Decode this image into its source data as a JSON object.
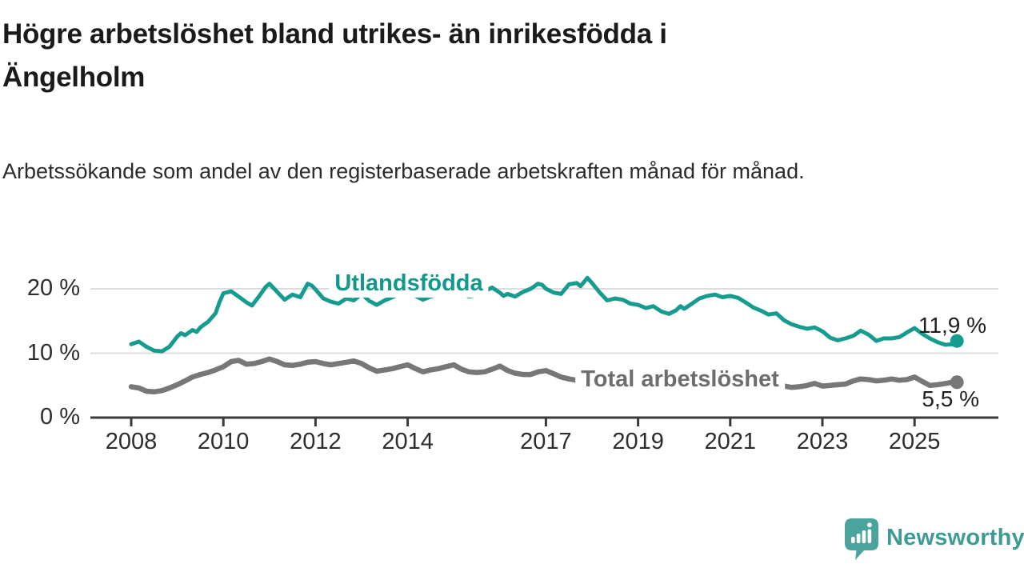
{
  "header": {
    "title": "Högre arbetslöshet bland utrikes- än inrikesfödda i Ängelholm",
    "subtitle": "Arbetssökande som andel av den registerbaserade arbetskraften månad för månad."
  },
  "footer": {
    "brand": "Newsworthy",
    "logo_icon": "newsworthy-speech-bubble-bar-chart-icon",
    "brand_color": "#3E9B94",
    "icon_color": "#4BA39D"
  },
  "chart_data": {
    "type": "line",
    "title": "Högre arbetslöshet bland utrikes- än inrikesfödda i Ängelholm",
    "subtitle": "Arbetssökande som andel av den registerbaserade arbetskraften månad för månad.",
    "xlabel": "",
    "ylabel": "",
    "unit": "%",
    "grid": "horizontal",
    "grid_color": "#dcdcdc",
    "axis_color": "#3a3a3a",
    "tick_text_color": "#2d2d2d",
    "value_text_color": "#1f1f1f",
    "x_range": [
      2008.0,
      2025.92
    ],
    "ylim": [
      0,
      23
    ],
    "x_ticks": [
      2008,
      2010,
      2012,
      2014,
      2017,
      2019,
      2021,
      2023,
      2025
    ],
    "y_ticks": [
      {
        "value": 0,
        "label": "0 %"
      },
      {
        "value": 10,
        "label": "10 %"
      },
      {
        "value": 20,
        "label": "20 %"
      }
    ],
    "series": [
      {
        "name": "Utlandsfödda",
        "color": "#169B8F",
        "label_color": "#12978B",
        "line_width": 5,
        "end_value": 11.9,
        "end_label": "11,9 %",
        "points": [
          [
            2008.0,
            11.4
          ],
          [
            2008.17,
            11.8
          ],
          [
            2008.33,
            11.0
          ],
          [
            2008.5,
            10.4
          ],
          [
            2008.67,
            10.3
          ],
          [
            2008.83,
            11.0
          ],
          [
            2009.0,
            12.6
          ],
          [
            2009.08,
            13.1
          ],
          [
            2009.17,
            12.8
          ],
          [
            2009.33,
            13.6
          ],
          [
            2009.42,
            13.3
          ],
          [
            2009.5,
            14.0
          ],
          [
            2009.67,
            14.9
          ],
          [
            2009.83,
            16.2
          ],
          [
            2009.92,
            18.0
          ],
          [
            2010.0,
            19.3
          ],
          [
            2010.17,
            19.6
          ],
          [
            2010.33,
            18.8
          ],
          [
            2010.5,
            17.9
          ],
          [
            2010.62,
            17.4
          ],
          [
            2010.75,
            18.6
          ],
          [
            2010.92,
            20.3
          ],
          [
            2011.0,
            20.8
          ],
          [
            2011.17,
            19.5
          ],
          [
            2011.33,
            18.3
          ],
          [
            2011.5,
            19.1
          ],
          [
            2011.67,
            18.7
          ],
          [
            2011.83,
            20.8
          ],
          [
            2011.92,
            20.5
          ],
          [
            2012.0,
            19.9
          ],
          [
            2012.17,
            18.5
          ],
          [
            2012.33,
            18.0
          ],
          [
            2012.5,
            17.7
          ],
          [
            2012.67,
            18.5
          ],
          [
            2012.83,
            18.2
          ],
          [
            2013.0,
            19.2
          ],
          [
            2013.17,
            18.1
          ],
          [
            2013.33,
            17.5
          ],
          [
            2013.5,
            18.2
          ],
          [
            2013.67,
            18.7
          ],
          [
            2013.83,
            19.2
          ],
          [
            2014.0,
            19.6
          ],
          [
            2014.17,
            18.9
          ],
          [
            2014.33,
            18.3
          ],
          [
            2014.5,
            18.8
          ],
          [
            2014.67,
            19.2
          ],
          [
            2014.83,
            19.5
          ],
          [
            2015.0,
            19.8
          ],
          [
            2015.17,
            19.2
          ],
          [
            2015.33,
            18.8
          ],
          [
            2015.5,
            19.0
          ],
          [
            2015.67,
            19.6
          ],
          [
            2015.83,
            20.2
          ],
          [
            2016.0,
            19.4
          ],
          [
            2016.08,
            18.9
          ],
          [
            2016.17,
            19.2
          ],
          [
            2016.33,
            18.8
          ],
          [
            2016.5,
            19.5
          ],
          [
            2016.67,
            20.0
          ],
          [
            2016.83,
            20.8
          ],
          [
            2016.92,
            20.6
          ],
          [
            2017.0,
            20.0
          ],
          [
            2017.17,
            19.4
          ],
          [
            2017.33,
            19.2
          ],
          [
            2017.5,
            20.7
          ],
          [
            2017.67,
            20.9
          ],
          [
            2017.75,
            20.4
          ],
          [
            2017.9,
            21.7
          ],
          [
            2018.0,
            20.9
          ],
          [
            2018.17,
            19.4
          ],
          [
            2018.33,
            18.2
          ],
          [
            2018.5,
            18.5
          ],
          [
            2018.67,
            18.3
          ],
          [
            2018.83,
            17.7
          ],
          [
            2019.0,
            17.5
          ],
          [
            2019.17,
            17.0
          ],
          [
            2019.33,
            17.3
          ],
          [
            2019.5,
            16.5
          ],
          [
            2019.67,
            16.1
          ],
          [
            2019.83,
            16.7
          ],
          [
            2019.92,
            17.3
          ],
          [
            2020.0,
            16.9
          ],
          [
            2020.17,
            17.7
          ],
          [
            2020.33,
            18.5
          ],
          [
            2020.5,
            18.9
          ],
          [
            2020.67,
            19.1
          ],
          [
            2020.83,
            18.7
          ],
          [
            2021.0,
            18.9
          ],
          [
            2021.17,
            18.6
          ],
          [
            2021.33,
            17.9
          ],
          [
            2021.5,
            17.1
          ],
          [
            2021.67,
            16.6
          ],
          [
            2021.83,
            16.0
          ],
          [
            2022.0,
            16.2
          ],
          [
            2022.17,
            15.1
          ],
          [
            2022.33,
            14.5
          ],
          [
            2022.5,
            14.1
          ],
          [
            2022.67,
            13.8
          ],
          [
            2022.83,
            14.0
          ],
          [
            2023.0,
            13.4
          ],
          [
            2023.17,
            12.4
          ],
          [
            2023.33,
            12.0
          ],
          [
            2023.5,
            12.3
          ],
          [
            2023.67,
            12.7
          ],
          [
            2023.83,
            13.5
          ],
          [
            2024.0,
            12.9
          ],
          [
            2024.17,
            11.9
          ],
          [
            2024.33,
            12.3
          ],
          [
            2024.5,
            12.3
          ],
          [
            2024.67,
            12.5
          ],
          [
            2024.83,
            13.2
          ],
          [
            2025.0,
            13.9
          ],
          [
            2025.17,
            13.0
          ],
          [
            2025.33,
            12.3
          ],
          [
            2025.5,
            11.7
          ],
          [
            2025.67,
            11.3
          ],
          [
            2025.83,
            11.4
          ],
          [
            2025.92,
            11.9
          ]
        ]
      },
      {
        "name": "Total arbetslöshet",
        "color": "#777777",
        "label_color": "#6d6d6d",
        "line_width": 6.5,
        "end_value": 5.5,
        "end_label": "5,5 %",
        "points": [
          [
            2008.0,
            4.8
          ],
          [
            2008.17,
            4.6
          ],
          [
            2008.33,
            4.1
          ],
          [
            2008.5,
            4.0
          ],
          [
            2008.67,
            4.2
          ],
          [
            2008.83,
            4.6
          ],
          [
            2009.0,
            5.1
          ],
          [
            2009.17,
            5.7
          ],
          [
            2009.33,
            6.3
          ],
          [
            2009.5,
            6.7
          ],
          [
            2009.67,
            7.0
          ],
          [
            2009.83,
            7.4
          ],
          [
            2010.0,
            7.9
          ],
          [
            2010.17,
            8.7
          ],
          [
            2010.33,
            8.9
          ],
          [
            2010.5,
            8.3
          ],
          [
            2010.67,
            8.4
          ],
          [
            2010.83,
            8.7
          ],
          [
            2011.0,
            9.1
          ],
          [
            2011.17,
            8.7
          ],
          [
            2011.33,
            8.2
          ],
          [
            2011.5,
            8.1
          ],
          [
            2011.67,
            8.3
          ],
          [
            2011.83,
            8.6
          ],
          [
            2012.0,
            8.7
          ],
          [
            2012.17,
            8.4
          ],
          [
            2012.33,
            8.2
          ],
          [
            2012.5,
            8.4
          ],
          [
            2012.67,
            8.6
          ],
          [
            2012.83,
            8.8
          ],
          [
            2013.0,
            8.4
          ],
          [
            2013.17,
            7.7
          ],
          [
            2013.33,
            7.2
          ],
          [
            2013.5,
            7.4
          ],
          [
            2013.67,
            7.6
          ],
          [
            2013.83,
            7.9
          ],
          [
            2014.0,
            8.2
          ],
          [
            2014.17,
            7.6
          ],
          [
            2014.33,
            7.1
          ],
          [
            2014.5,
            7.4
          ],
          [
            2014.67,
            7.6
          ],
          [
            2014.83,
            7.9
          ],
          [
            2015.0,
            8.2
          ],
          [
            2015.17,
            7.5
          ],
          [
            2015.33,
            7.1
          ],
          [
            2015.5,
            7.0
          ],
          [
            2015.67,
            7.1
          ],
          [
            2015.83,
            7.5
          ],
          [
            2016.0,
            8.0
          ],
          [
            2016.17,
            7.3
          ],
          [
            2016.33,
            6.9
          ],
          [
            2016.5,
            6.7
          ],
          [
            2016.67,
            6.7
          ],
          [
            2016.83,
            7.1
          ],
          [
            2017.0,
            7.3
          ],
          [
            2017.17,
            6.8
          ],
          [
            2017.33,
            6.3
          ],
          [
            2017.5,
            6.0
          ],
          [
            2017.67,
            5.8
          ],
          [
            2017.83,
            5.7
          ],
          [
            2018.0,
            5.9
          ],
          [
            2018.17,
            5.6
          ],
          [
            2018.33,
            5.4
          ],
          [
            2018.5,
            5.2
          ],
          [
            2018.67,
            5.1
          ],
          [
            2018.83,
            5.2
          ],
          [
            2019.0,
            5.3
          ],
          [
            2019.17,
            5.1
          ],
          [
            2019.33,
            4.9
          ],
          [
            2019.5,
            4.8
          ],
          [
            2019.67,
            4.9
          ],
          [
            2019.83,
            5.1
          ],
          [
            2020.0,
            5.3
          ],
          [
            2020.17,
            5.9
          ],
          [
            2020.33,
            6.4
          ],
          [
            2020.5,
            6.6
          ],
          [
            2020.67,
            6.5
          ],
          [
            2020.83,
            6.3
          ],
          [
            2021.0,
            6.3
          ],
          [
            2021.17,
            6.0
          ],
          [
            2021.33,
            5.7
          ],
          [
            2021.5,
            5.4
          ],
          [
            2021.67,
            5.2
          ],
          [
            2021.83,
            5.1
          ],
          [
            2022.0,
            5.1
          ],
          [
            2022.17,
            4.9
          ],
          [
            2022.33,
            4.7
          ],
          [
            2022.5,
            4.8
          ],
          [
            2022.67,
            5.0
          ],
          [
            2022.83,
            5.3
          ],
          [
            2023.0,
            4.9
          ],
          [
            2023.17,
            5.0
          ],
          [
            2023.33,
            5.1
          ],
          [
            2023.5,
            5.2
          ],
          [
            2023.67,
            5.7
          ],
          [
            2023.83,
            6.0
          ],
          [
            2024.0,
            5.9
          ],
          [
            2024.17,
            5.7
          ],
          [
            2024.33,
            5.8
          ],
          [
            2024.5,
            6.0
          ],
          [
            2024.67,
            5.8
          ],
          [
            2024.83,
            5.9
          ],
          [
            2025.0,
            6.3
          ],
          [
            2025.17,
            5.6
          ],
          [
            2025.33,
            5.0
          ],
          [
            2025.5,
            5.1
          ],
          [
            2025.67,
            5.3
          ],
          [
            2025.83,
            5.5
          ],
          [
            2025.92,
            5.5
          ]
        ]
      }
    ]
  }
}
